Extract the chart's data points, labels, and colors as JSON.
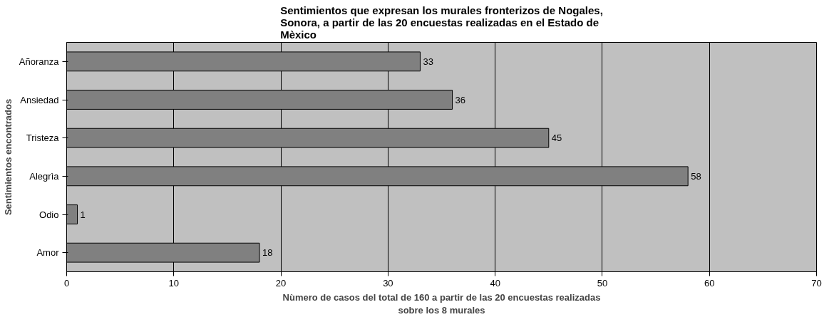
{
  "chart_data": {
    "type": "bar",
    "orientation": "horizontal",
    "title": "Sentimientos que expresan los murales fronterizos de Nogales, Sonora, a partir de las 20 encuestas realizadas en el Estado de Mèxico",
    "xlabel": "Nùmero de casos del total de 160 a partir de las 20 encuestas realizadas sobre los 8 murales",
    "ylabel": "Sentimientos encontrados",
    "categories": [
      "Añoranza",
      "Ansiedad",
      "Tristeza",
      "Alegrìa",
      "Odio",
      "Amor"
    ],
    "values": [
      33,
      36,
      45,
      58,
      1,
      18
    ],
    "color": "#808080",
    "xlim": [
      0,
      70
    ],
    "xticks": [
      0,
      10,
      20,
      30,
      40,
      50,
      60,
      70
    ],
    "grid": "x",
    "data_labels": true
  }
}
